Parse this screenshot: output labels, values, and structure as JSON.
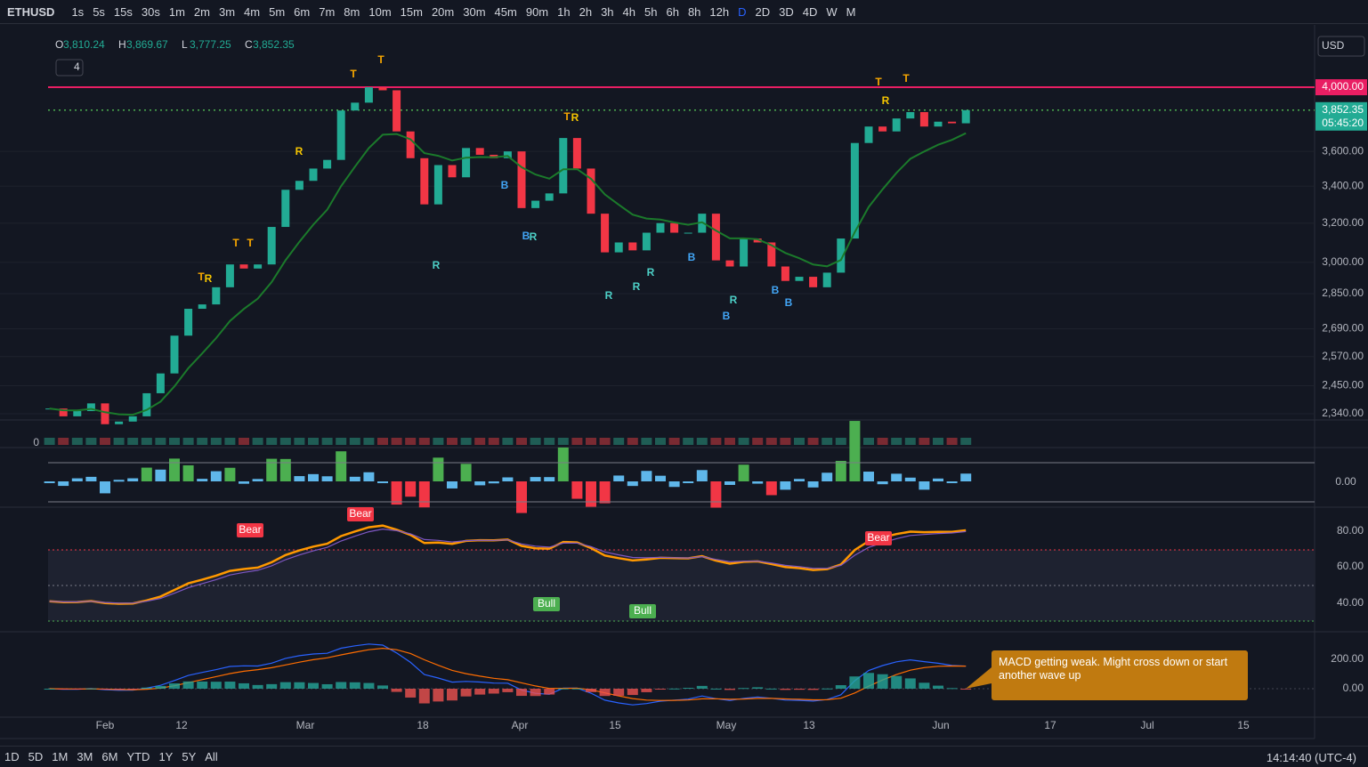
{
  "toolbar": {
    "symbol": "ETHUSD",
    "intervals": [
      "1s",
      "5s",
      "15s",
      "30s",
      "1m",
      "2m",
      "3m",
      "4m",
      "5m",
      "6m",
      "7m",
      "8m",
      "10m",
      "15m",
      "20m",
      "30m",
      "45m",
      "90m",
      "1h",
      "2h",
      "3h",
      "4h",
      "5h",
      "6h",
      "8h",
      "12h",
      "D",
      "2D",
      "3D",
      "4D",
      "W",
      "M"
    ],
    "active": "D"
  },
  "legend": {
    "open": "O",
    "open_value": "3,810.24",
    "high": "H",
    "high_value": "3,869.67",
    "low": "L",
    "low_value": "3,777.25",
    "close": "C",
    "close_value": "3,852.35",
    "indicators": "4"
  },
  "currency": "USD",
  "price_range": [
    2316,
    4386
  ],
  "price_ticks": [
    {
      "value": 3600,
      "label": "3,600.00"
    },
    {
      "value": 3400,
      "label": "3,400.00"
    },
    {
      "value": 3200,
      "label": "3,200.00"
    },
    {
      "value": 3000,
      "label": "3,000.00"
    },
    {
      "value": 2850,
      "label": "2,850.00"
    },
    {
      "value": 2690,
      "label": "2,690.00"
    },
    {
      "value": 2570,
      "label": "2,570.00"
    },
    {
      "value": 2450,
      "label": "2,450.00"
    },
    {
      "value": 2340,
      "label": "2,340.00"
    }
  ],
  "resistance": {
    "value": 4000,
    "label": "4,000.00"
  },
  "last_price": {
    "value": 3852.35,
    "label": "3,852.35",
    "countdown": "05:45:20"
  },
  "closes": [
    2360,
    2330,
    2350,
    2380,
    2300,
    2310,
    2330,
    2420,
    2500,
    2660,
    2780,
    2800,
    2880,
    2990,
    2970,
    2990,
    3180,
    3380,
    3430,
    3500,
    3550,
    3850,
    3900,
    4000,
    3980,
    3720,
    3560,
    3300,
    3520,
    3450,
    3620,
    3580,
    3560,
    3600,
    3280,
    3320,
    3360,
    3680,
    3500,
    3250,
    3050,
    3100,
    3060,
    3150,
    3200,
    3150,
    3150,
    3250,
    3010,
    2980,
    3120,
    3100,
    2980,
    2910,
    2930,
    2880,
    2950,
    3120,
    3650,
    3750,
    3720,
    3800,
    3840,
    3750,
    3780,
    3770,
    3852.35
  ],
  "signals": [
    "T",
    "T",
    "R",
    "T",
    "T",
    "T",
    "R",
    "R",
    "B",
    "B",
    "R",
    "T",
    "R",
    "R",
    "R",
    "R",
    "B",
    "R",
    "B",
    "B",
    "B",
    "T",
    "R",
    "T"
  ],
  "volume_label": "0",
  "osc_label": "0.00",
  "rsi_ticks": [
    "80.00",
    "60.00",
    "40.00"
  ],
  "rsi_tags": [
    "Bear",
    "Bear",
    "Bear",
    "Bull",
    "Bull"
  ],
  "macd_ticks": [
    "200.00",
    "0.00"
  ],
  "annotation": "MACD getting weak. Might cross down or start another wave up",
  "time_axis": [
    "Feb",
    "12",
    "Mar",
    "18",
    "Apr",
    "15",
    "May",
    "13",
    "Jun",
    "17",
    "Jul",
    "15"
  ],
  "ranges": [
    "1D",
    "5D",
    "1M",
    "3M",
    "6M",
    "YTD",
    "1Y",
    "5Y",
    "All"
  ],
  "clock": "14:14:40 (UTC-4)"
}
